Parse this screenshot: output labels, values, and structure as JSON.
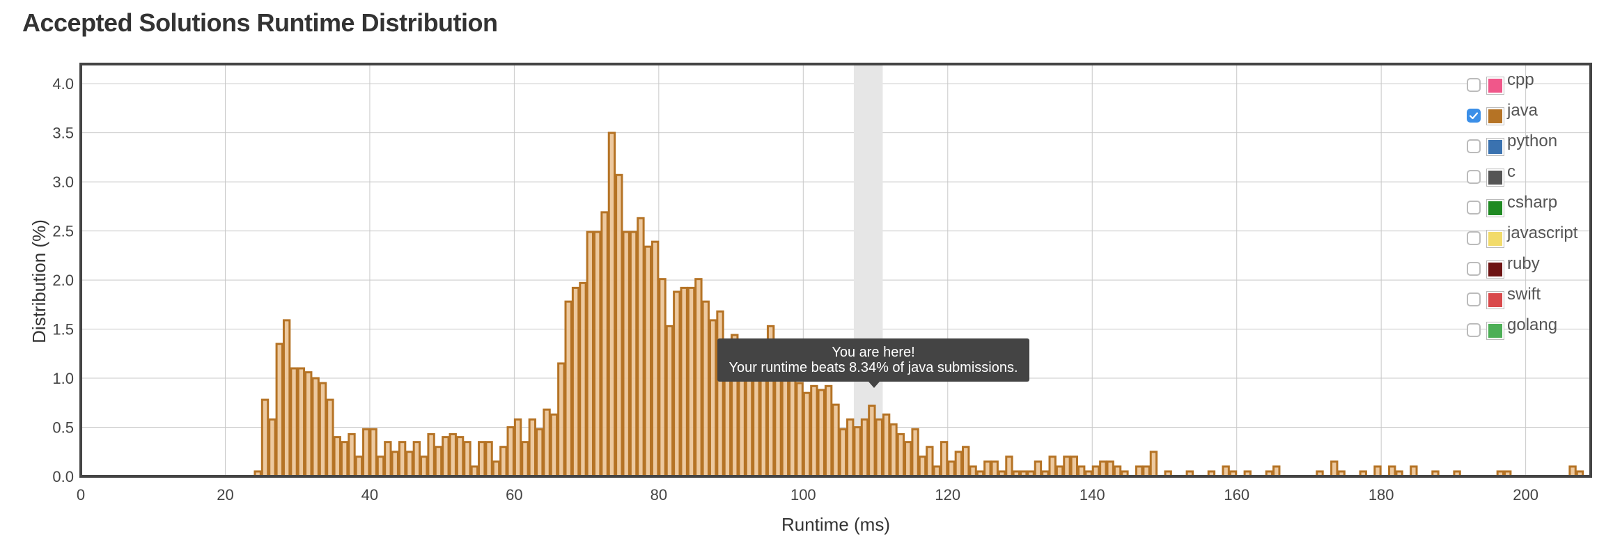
{
  "page": {
    "title": "Accepted Solutions Runtime Distribution"
  },
  "chart_data": {
    "type": "bar",
    "xlabel": "Runtime (ms)",
    "ylabel": "Distribution (%)",
    "xlim": [
      0,
      209
    ],
    "ylim": [
      0,
      4.2
    ],
    "xticks": [
      0,
      20,
      40,
      60,
      80,
      100,
      120,
      140,
      160,
      180,
      200
    ],
    "yticks": [
      0.0,
      0.5,
      1.0,
      1.5,
      2.0,
      2.5,
      3.0,
      3.5,
      4.0
    ],
    "grid": true,
    "bin_width_ms": 1,
    "highlight_range": [
      107,
      111
    ],
    "series": [
      {
        "name": "java",
        "color": "#b57325",
        "fill": "#ecc497",
        "points": [
          [
            24,
            0.05
          ],
          [
            25,
            0.78
          ],
          [
            26,
            0.58
          ],
          [
            27,
            1.35
          ],
          [
            28,
            1.59
          ],
          [
            29,
            1.1
          ],
          [
            30,
            1.1
          ],
          [
            31,
            1.06
          ],
          [
            32,
            1.0
          ],
          [
            33,
            0.95
          ],
          [
            34,
            0.78
          ],
          [
            35,
            0.4
          ],
          [
            36,
            0.35
          ],
          [
            37,
            0.43
          ],
          [
            38,
            0.2
          ],
          [
            39,
            0.48
          ],
          [
            40,
            0.48
          ],
          [
            41,
            0.2
          ],
          [
            42,
            0.35
          ],
          [
            43,
            0.25
          ],
          [
            44,
            0.35
          ],
          [
            45,
            0.25
          ],
          [
            46,
            0.35
          ],
          [
            47,
            0.2
          ],
          [
            48,
            0.43
          ],
          [
            49,
            0.3
          ],
          [
            50,
            0.4
          ],
          [
            51,
            0.43
          ],
          [
            52,
            0.4
          ],
          [
            53,
            0.35
          ],
          [
            54,
            0.1
          ],
          [
            55,
            0.35
          ],
          [
            56,
            0.35
          ],
          [
            57,
            0.15
          ],
          [
            58,
            0.3
          ],
          [
            59,
            0.5
          ],
          [
            60,
            0.58
          ],
          [
            61,
            0.35
          ],
          [
            62,
            0.58
          ],
          [
            63,
            0.48
          ],
          [
            64,
            0.68
          ],
          [
            65,
            0.63
          ],
          [
            66,
            1.15
          ],
          [
            67,
            1.78
          ],
          [
            68,
            1.92
          ],
          [
            69,
            1.97
          ],
          [
            70,
            2.49
          ],
          [
            71,
            2.49
          ],
          [
            72,
            2.69
          ],
          [
            73,
            3.5
          ],
          [
            74,
            3.07
          ],
          [
            75,
            2.49
          ],
          [
            76,
            2.49
          ],
          [
            77,
            2.63
          ],
          [
            78,
            2.34
          ],
          [
            79,
            2.39
          ],
          [
            80,
            2.01
          ],
          [
            81,
            1.53
          ],
          [
            82,
            1.88
          ],
          [
            83,
            1.92
          ],
          [
            84,
            1.92
          ],
          [
            85,
            2.01
          ],
          [
            86,
            1.78
          ],
          [
            87,
            1.59
          ],
          [
            88,
            1.68
          ],
          [
            89,
            1.35
          ],
          [
            90,
            1.44
          ],
          [
            91,
            1.2
          ],
          [
            92,
            1.1
          ],
          [
            93,
            1.0
          ],
          [
            94,
            1.3
          ],
          [
            95,
            1.53
          ],
          [
            96,
            1.2
          ],
          [
            97,
            1.0
          ],
          [
            98,
            1.3
          ],
          [
            99,
            0.95
          ],
          [
            100,
            0.85
          ],
          [
            101,
            0.92
          ],
          [
            102,
            0.88
          ],
          [
            103,
            0.92
          ],
          [
            104,
            0.73
          ],
          [
            105,
            0.48
          ],
          [
            106,
            0.58
          ],
          [
            107,
            0.5
          ],
          [
            108,
            0.58
          ],
          [
            109,
            0.72
          ],
          [
            110,
            0.58
          ],
          [
            111,
            0.63
          ],
          [
            112,
            0.53
          ],
          [
            113,
            0.43
          ],
          [
            114,
            0.35
          ],
          [
            115,
            0.48
          ],
          [
            116,
            0.2
          ],
          [
            117,
            0.3
          ],
          [
            118,
            0.1
          ],
          [
            119,
            0.35
          ],
          [
            120,
            0.15
          ],
          [
            121,
            0.25
          ],
          [
            122,
            0.3
          ],
          [
            123,
            0.1
          ],
          [
            124,
            0.05
          ],
          [
            125,
            0.15
          ],
          [
            126,
            0.15
          ],
          [
            127,
            0.05
          ],
          [
            128,
            0.2
          ],
          [
            129,
            0.05
          ],
          [
            130,
            0.05
          ],
          [
            131,
            0.05
          ],
          [
            132,
            0.15
          ],
          [
            133,
            0.05
          ],
          [
            134,
            0.2
          ],
          [
            135,
            0.1
          ],
          [
            136,
            0.2
          ],
          [
            137,
            0.2
          ],
          [
            138,
            0.1
          ],
          [
            139,
            0.05
          ],
          [
            140,
            0.1
          ],
          [
            141,
            0.15
          ],
          [
            142,
            0.15
          ],
          [
            143,
            0.1
          ],
          [
            144,
            0.05
          ],
          [
            146,
            0.1
          ],
          [
            147,
            0.1
          ],
          [
            148,
            0.25
          ],
          [
            150,
            0.05
          ],
          [
            153,
            0.05
          ],
          [
            156,
            0.05
          ],
          [
            158,
            0.1
          ],
          [
            159,
            0.05
          ],
          [
            161,
            0.05
          ],
          [
            164,
            0.05
          ],
          [
            165,
            0.1
          ],
          [
            171,
            0.05
          ],
          [
            173,
            0.15
          ],
          [
            174,
            0.05
          ],
          [
            177,
            0.05
          ],
          [
            179,
            0.1
          ],
          [
            181,
            0.1
          ],
          [
            182,
            0.05
          ],
          [
            184,
            0.1
          ],
          [
            187,
            0.05
          ],
          [
            190,
            0.05
          ],
          [
            196,
            0.05
          ],
          [
            197,
            0.05
          ],
          [
            206,
            0.1
          ],
          [
            207,
            0.05
          ]
        ]
      }
    ],
    "legend": {
      "position": "top-right",
      "entries": [
        {
          "label": "cpp",
          "color": "#f0578a",
          "checked": false
        },
        {
          "label": "java",
          "color": "#b57325",
          "checked": true
        },
        {
          "label": "python",
          "color": "#3a72b0",
          "checked": false
        },
        {
          "label": "c",
          "color": "#555555",
          "checked": false
        },
        {
          "label": "csharp",
          "color": "#1f8a22",
          "checked": false
        },
        {
          "label": "javascript",
          "color": "#f2db6a",
          "checked": false
        },
        {
          "label": "ruby",
          "color": "#6e1414",
          "checked": false
        },
        {
          "label": "swift",
          "color": "#d9494b",
          "checked": false
        },
        {
          "label": "golang",
          "color": "#4caf56",
          "checked": false
        }
      ]
    },
    "tooltip": {
      "line1": "You are here!",
      "line2": "Your runtime beats 8.34% of java submissions."
    }
  }
}
